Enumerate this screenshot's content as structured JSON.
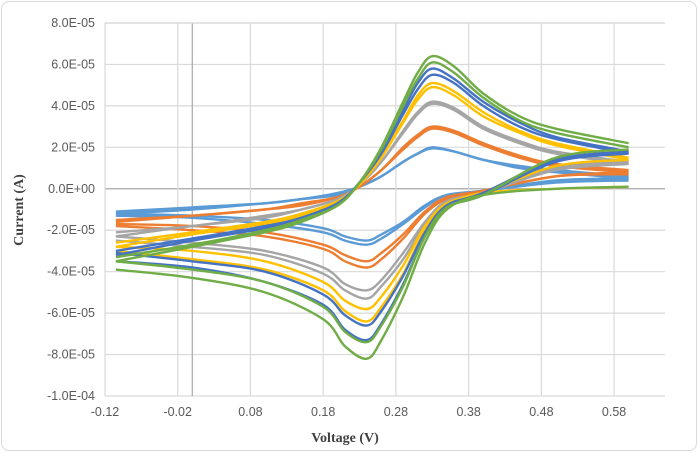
{
  "chart_data": {
    "type": "line",
    "title": "",
    "xlabel": "Voltage (V)",
    "ylabel": "Current (A)",
    "xlim": [
      -0.12,
      0.65
    ],
    "ylim": [
      -0.0001,
      8e-05
    ],
    "grid": true,
    "legend": "none",
    "x_ticks": [
      "-0.12",
      "-0.02",
      "0.08",
      "0.18",
      "0.28",
      "0.38",
      "0.48",
      "0.58"
    ],
    "x_tick_values": [
      -0.12,
      -0.02,
      0.08,
      0.18,
      0.28,
      0.38,
      0.48,
      0.58
    ],
    "y_ticks": [
      "8.0E-05",
      "6.0E-05",
      "4.0E-05",
      "2.0E-05",
      "0.0E+00",
      "-2.0E-05",
      "-4.0E-05",
      "-6.0E-05",
      "-8.0E-05",
      "-1.0E-04"
    ],
    "y_tick_values": [
      8e-05,
      6e-05,
      4e-05,
      2e-05,
      0,
      -2e-05,
      -4e-05,
      -6e-05,
      -8e-05,
      -0.0001
    ],
    "x_forward": [
      -0.105,
      0.0,
      0.1,
      0.15,
      0.2,
      0.23,
      0.26,
      0.29,
      0.31,
      0.33,
      0.36,
      0.4,
      0.45,
      0.5,
      0.6
    ],
    "x_reverse": [
      0.6,
      0.5,
      0.4,
      0.35,
      0.32,
      0.29,
      0.26,
      0.24,
      0.21,
      0.18,
      0.1,
      0.0,
      -0.105
    ],
    "series": [
      {
        "color": "#5B9BD5",
        "forward": [
          -1.1e-05,
          -9e-06,
          -7e-06,
          -5e-06,
          -2e-06,
          1e-06,
          6e-06,
          1.3e-05,
          1.7e-05,
          2e-05,
          1.8e-05,
          1.4e-05,
          1.1e-05,
          9e-06,
          6e-06
        ],
        "reverse": [
          4e-06,
          3e-06,
          -1e-06,
          -3e-06,
          -8e-06,
          -1.6e-05,
          -2.2e-05,
          -2.5e-05,
          -2.3e-05,
          -1.9e-05,
          -1.5e-05,
          -1.3e-05,
          -1.2e-05
        ]
      },
      {
        "color": "#5B9BD5",
        "forward": [
          -1.2e-05,
          -1e-05,
          -7e-06,
          -5e-06,
          -3e-06,
          1e-06,
          6e-06,
          1.3e-05,
          1.7e-05,
          1.95e-05,
          1.8e-05,
          1.4e-05,
          1e-05,
          8e-06,
          5e-06
        ],
        "reverse": [
          5e-06,
          4e-06,
          -1e-06,
          -3e-06,
          -9e-06,
          -1.7e-05,
          -2.4e-05,
          -2.7e-05,
          -2.5e-05,
          -2.1e-05,
          -1.7e-05,
          -1.4e-05,
          -1.3e-05
        ]
      },
      {
        "color": "#ED7D31",
        "forward": [
          -1.5e-05,
          -1.3e-05,
          -1e-05,
          -7e-06,
          -4e-06,
          1e-06,
          9e-06,
          1.9e-05,
          2.5e-05,
          2.9e-05,
          2.7e-05,
          2.1e-05,
          1.5e-05,
          1.1e-05,
          8e-06
        ],
        "reverse": [
          7e-06,
          6e-06,
          -1e-06,
          -4e-06,
          -1.1e-05,
          -2.2e-05,
          -3.1e-05,
          -3.5e-05,
          -3.2e-05,
          -2.7e-05,
          -2.1e-05,
          -1.8e-05,
          -1.7e-05
        ]
      },
      {
        "color": "#ED7D31",
        "forward": [
          -1.6e-05,
          -1.3e-05,
          -1e-05,
          -8e-06,
          -4e-06,
          1e-06,
          9e-06,
          2e-05,
          2.6e-05,
          3e-05,
          2.8e-05,
          2.2e-05,
          1.6e-05,
          1.2e-05,
          9e-06
        ],
        "reverse": [
          8e-06,
          6e-06,
          -1e-06,
          -5e-06,
          -1.2e-05,
          -2.4e-05,
          -3.4e-05,
          -3.8e-05,
          -3.5e-05,
          -2.9e-05,
          -2.3e-05,
          -2e-05,
          -1.8e-05
        ]
      },
      {
        "color": "#A5A5A5",
        "forward": [
          -2.1e-05,
          -1.8e-05,
          -1.3e-05,
          -1e-05,
          -5e-06,
          2e-06,
          1.3e-05,
          2.7e-05,
          3.6e-05,
          4.1e-05,
          3.8e-05,
          2.9e-05,
          2.2e-05,
          1.7e-05,
          1.2e-05
        ],
        "reverse": [
          1.2e-05,
          9e-06,
          -2e-06,
          -6e-06,
          -1.6e-05,
          -3.1e-05,
          -4.4e-05,
          -4.9e-05,
          -4.6e-05,
          -3.8e-05,
          -3e-05,
          -2.6e-05,
          -2.3e-05
        ]
      },
      {
        "color": "#A5A5A5",
        "forward": [
          -2.3e-05,
          -1.8e-05,
          -1.4e-05,
          -1e-05,
          -5e-06,
          2e-06,
          1.3e-05,
          2.8e-05,
          3.7e-05,
          4.2e-05,
          3.9e-05,
          3e-05,
          2.3e-05,
          1.8e-05,
          1.3e-05
        ],
        "reverse": [
          1.3e-05,
          1e-05,
          -2e-06,
          -6e-06,
          -1.7e-05,
          -3.4e-05,
          -4.7e-05,
          -5.3e-05,
          -4.9e-05,
          -4.1e-05,
          -3.2e-05,
          -2.8e-05,
          -2.5e-05
        ]
      },
      {
        "color": "#FFC000",
        "forward": [
          -2.6e-05,
          -2.1e-05,
          -1.6e-05,
          -1.2e-05,
          -6e-06,
          2e-06,
          1.5e-05,
          3.2e-05,
          4.3e-05,
          4.9e-05,
          4.5e-05,
          3.5e-05,
          2.7e-05,
          2.1e-05,
          1.4e-05
        ],
        "reverse": [
          1.4e-05,
          1.1e-05,
          -2e-06,
          -7e-06,
          -1.8e-05,
          -3.7e-05,
          -5.2e-05,
          -5.8e-05,
          -5.4e-05,
          -4.5e-05,
          -3.5e-05,
          -3e-05,
          -2.8e-05
        ]
      },
      {
        "color": "#FFC000",
        "forward": [
          -2.8e-05,
          -2.2e-05,
          -1.7e-05,
          -1.3e-05,
          -6e-06,
          2e-06,
          1.6e-05,
          3.3e-05,
          4.5e-05,
          5.1e-05,
          4.7e-05,
          3.7e-05,
          2.8e-05,
          2.2e-05,
          1.5e-05
        ],
        "reverse": [
          1e-06,
          0.0,
          -2e-06,
          -8e-06,
          -2e-05,
          -4.1e-05,
          -5.7e-05,
          -6.4e-05,
          -5.9e-05,
          -4.9e-05,
          -3.9e-05,
          -3.4e-05,
          -3e-05
        ]
      },
      {
        "color": "#4472C4",
        "forward": [
          -3e-05,
          -2.4e-05,
          -1.8e-05,
          -1.4e-05,
          -7e-06,
          3e-06,
          1.7e-05,
          3.6e-05,
          4.8e-05,
          5.5e-05,
          5.1e-05,
          4e-05,
          3e-05,
          2.4e-05,
          1.7e-05
        ],
        "reverse": [
          1.8e-05,
          1.4e-05,
          -2e-06,
          -8e-06,
          -2.1e-05,
          -4.2e-05,
          -5.9e-05,
          -6.6e-05,
          -6.1e-05,
          -5.1e-05,
          -4e-05,
          -3.5e-05,
          -3.1e-05
        ]
      },
      {
        "color": "#4472C4",
        "forward": [
          -3.2e-05,
          -2.5e-05,
          -1.9e-05,
          -1.4e-05,
          -7e-06,
          3e-06,
          1.8e-05,
          3.8e-05,
          5.1e-05,
          5.8e-05,
          5.3e-05,
          4.2e-05,
          3.2e-05,
          2.5e-05,
          1.8e-05
        ],
        "reverse": [
          1.7e-05,
          1.3e-05,
          -3e-06,
          -9e-06,
          -2.3e-05,
          -4.6e-05,
          -6.5e-05,
          -7.3e-05,
          -6.8e-05,
          -5.6e-05,
          -4.5e-05,
          -3.8e-05,
          -3.5e-05
        ]
      },
      {
        "color": "#70AD47",
        "forward": [
          -3.3e-05,
          -2.7e-05,
          -2e-05,
          -1.5e-05,
          -8e-06,
          3e-06,
          1.9e-05,
          4e-05,
          5.3e-05,
          6.1e-05,
          5.6e-05,
          4.4e-05,
          3.3e-05,
          2.7e-05,
          2e-05
        ],
        "reverse": [
          1.9e-05,
          1.5e-05,
          -3e-06,
          -9e-06,
          -2.3e-05,
          -4.7e-05,
          -6.6e-05,
          -7.4e-05,
          -6.9e-05,
          -5.7e-05,
          -4.5e-05,
          -3.9e-05,
          -3.5e-05
        ]
      },
      {
        "color": "#70AD47",
        "forward": [
          -3.5e-05,
          -2.8e-05,
          -2.1e-05,
          -1.6e-05,
          -8e-06,
          3e-06,
          2e-05,
          4.2e-05,
          5.6e-05,
          6.4e-05,
          5.9e-05,
          4.6e-05,
          3.5e-05,
          2.9e-05,
          2.2e-05
        ],
        "reverse": [
          1e-06,
          0.0,
          -3e-06,
          -1e-05,
          -2.6e-05,
          -5.2e-05,
          -7.3e-05,
          -8.2e-05,
          -7.6e-05,
          -6.3e-05,
          -5e-05,
          -4.3e-05,
          -3.9e-05
        ]
      }
    ]
  }
}
